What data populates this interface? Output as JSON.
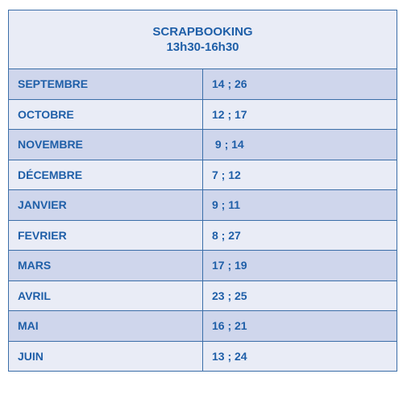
{
  "header": {
    "title": "SCRAPBOOKING",
    "time": "13h30-16h30"
  },
  "rows": [
    {
      "month": "SEPTEMBRE",
      "dates": "14 ; 26"
    },
    {
      "month": "OCTOBRE",
      "dates": "12 ; 17"
    },
    {
      "month": "NOVEMBRE",
      "dates": " 9 ; 14"
    },
    {
      "month": "DÉCEMBRE",
      "dates": "7 ; 12"
    },
    {
      "month": "JANVIER",
      "dates": "9 ; 11"
    },
    {
      "month": "FEVRIER",
      "dates": "8 ; 27"
    },
    {
      "month": "MARS",
      "dates": "17 ; 19"
    },
    {
      "month": "AVRIL",
      "dates": "23 ; 25"
    },
    {
      "month": "MAI",
      "dates": "16 ; 21"
    },
    {
      "month": "JUIN",
      "dates": "13 ; 24"
    }
  ],
  "colors": {
    "text": "#1f5fa8",
    "border": "#3b6ea8",
    "row_dark": "#cfd6ec",
    "row_light": "#e9ecf6"
  }
}
